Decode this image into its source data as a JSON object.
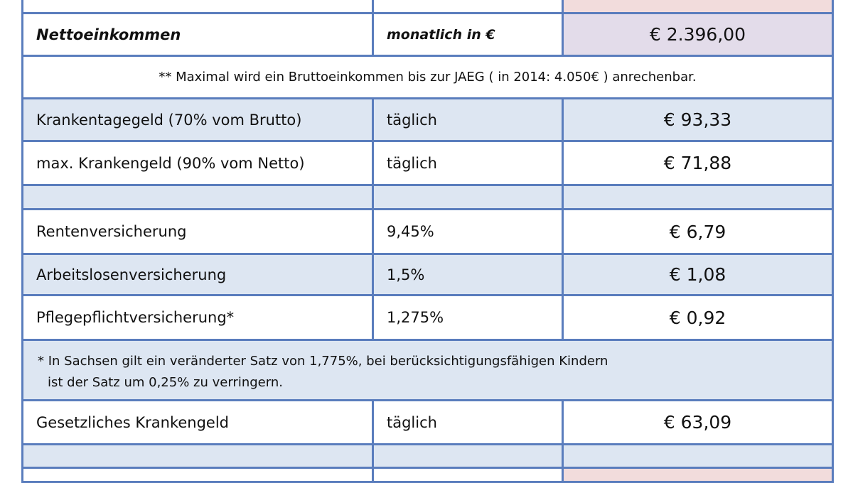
{
  "table": {
    "rows": [
      {
        "label": "Nettoeinkommen",
        "unit": "monatlich in €",
        "value": "€ 2.396,00"
      },
      {
        "note": "** Maximal wird ein Bruttoeinkommen bis zur JAEG ( in 2014: 4.050€ ) anrechenbar."
      },
      {
        "label": "Krankentagegeld (70% vom Brutto)",
        "unit": "täglich",
        "value": "€ 93,33"
      },
      {
        "label": "max. Krankengeld (90% vom Netto)",
        "unit": "täglich",
        "value": "€ 71,88"
      },
      {
        "label": "Rentenversicherung",
        "unit": "9,45%",
        "value": "€ 6,79"
      },
      {
        "label": "Arbeitslosenversicherung",
        "unit": "1,5%",
        "value": "€ 1,08"
      },
      {
        "label": "Pflegepflichtversicherung*",
        "unit": "1,275%",
        "value": "€ 0,92"
      },
      {
        "note_lines": [
          "* In Sachsen gilt ein veränderter Satz von 1,775%, bei berücksichtigungsfähigen Kindern",
          "ist der Satz um 0,25% zu verringern."
        ]
      },
      {
        "label": "Gesetzliches Krankengeld",
        "unit": "täglich",
        "value": "€ 63,09"
      }
    ]
  }
}
